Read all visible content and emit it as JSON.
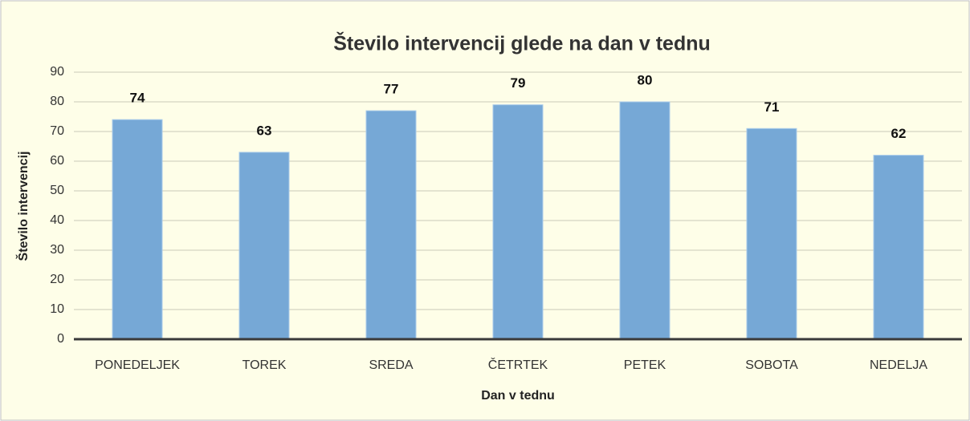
{
  "chart_data": {
    "type": "bar",
    "title": "Število intervencij glede na dan v tednu",
    "x_label": "Dan v tednu",
    "y_label": "Število intervencij",
    "categories": [
      "PONEDELJEK",
      "TOREK",
      "SREDA",
      "ČETRTEK",
      "PETEK",
      "SOBOTA",
      "NEDELJA"
    ],
    "values": [
      74,
      63,
      77,
      79,
      80,
      71,
      62
    ],
    "color": "#76a8d6",
    "ylim": [
      0,
      90
    ],
    "yticks": [
      0,
      10,
      20,
      30,
      40,
      50,
      60,
      70,
      80,
      90
    ],
    "grid": true
  }
}
